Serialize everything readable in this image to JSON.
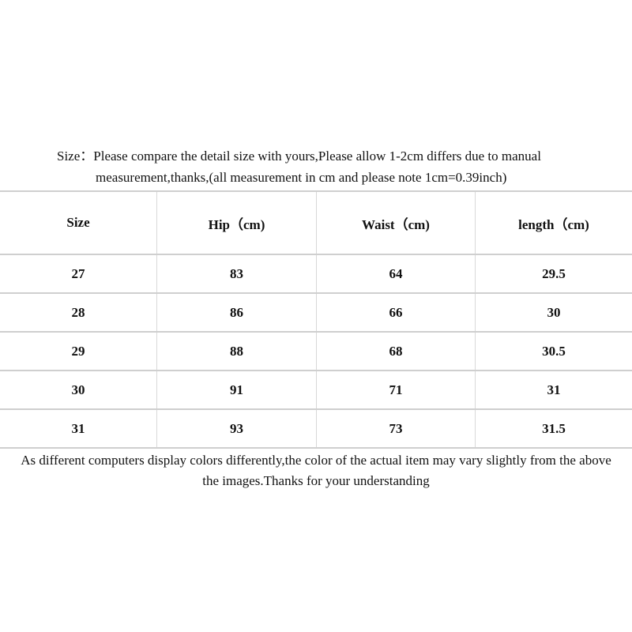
{
  "intro": {
    "line1": "Size：Please compare the detail size with yours,Please allow 1-2cm differs due to manual",
    "line2": "measurement,thanks,(all measurement in cm and please note 1cm=0.39inch)"
  },
  "table": {
    "headers": [
      "Size",
      "Hip（cm)",
      "Waist（cm)",
      "length（cm)"
    ],
    "rows": [
      [
        "27",
        "83",
        "64",
        "29.5"
      ],
      [
        "28",
        "86",
        "66",
        "30"
      ],
      [
        "29",
        "88",
        "68",
        "30.5"
      ],
      [
        "30",
        "91",
        "71",
        "31"
      ],
      [
        "31",
        "93",
        "73",
        "31.5"
      ]
    ]
  },
  "outro": {
    "line1": "As different computers display colors differently,the color of the actual item may vary slightly from the above",
    "line2": "the images.Thanks for your understanding"
  }
}
